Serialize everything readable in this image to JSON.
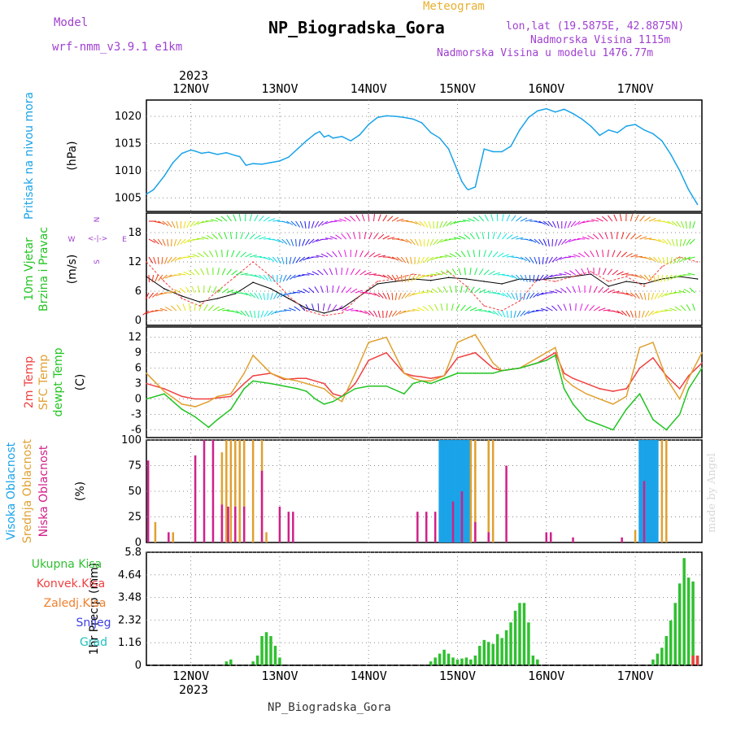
{
  "header": {
    "model_label": "Model",
    "model_name": "wrf-nmm_v3.9.1  e1km",
    "subtitle": "Meteogram",
    "title": "NP_Biogradska_Gora",
    "lonlat": "lon,lat (19.5875E, 42.8875N)",
    "elevation": "Nadmorska Visina 1115m",
    "model_elevation": "Nadmorska Visina u modelu 1476.77m"
  },
  "footer": {
    "station": "NP_Biogradska_Gora",
    "credit": "made by Angel"
  },
  "colors": {
    "pressure": "#1aa3e8",
    "temp2m": "#f04040",
    "sfc": "#e0a030",
    "dewpt": "#22c422",
    "high_cloud": "#1aa3e8",
    "mid_cloud": "#e0a030",
    "low_cloud": "#d0208a",
    "total_precip": "#30c030",
    "conv_precip": "#f04040",
    "frozen_precip": "#f08030",
    "snow": "#4040e0",
    "graupel": "#20c0c0",
    "model_color": "#a040d0",
    "subtitle_color": "#e8b030"
  },
  "chart_data": [
    {
      "panel": "pressure",
      "type": "line",
      "ylabels": [
        "Pritisak na nivou mora",
        "(hPa)"
      ],
      "x_year": "2023",
      "x_ticks": [
        "12NOV",
        "13NOV",
        "14NOV",
        "15NOV",
        "16NOV",
        "17NOV"
      ],
      "y_ticks": [
        "1005",
        "1010",
        "1015",
        "1020"
      ],
      "ylim": [
        1002.5,
        1023
      ],
      "xlim": [
        0,
        6.25
      ],
      "series": [
        {
          "x": [
            0,
            0.08,
            0.2,
            0.3,
            0.4,
            0.5,
            0.55,
            0.62,
            0.7,
            0.8,
            0.9,
            1.0,
            1.05,
            1.12,
            1.2,
            1.3,
            1.4,
            1.5,
            1.6,
            1.7,
            1.8,
            1.9,
            1.95,
            2.0,
            2.05,
            2.1,
            2.2,
            2.3,
            2.4,
            2.5,
            2.6,
            2.7,
            2.8,
            2.9,
            3.0,
            3.1,
            3.2,
            3.3,
            3.4,
            3.45,
            3.5,
            3.55,
            3.6,
            3.62,
            3.7,
            3.8,
            3.9,
            4.0,
            4.1,
            4.2,
            4.3,
            4.4,
            4.5,
            4.6,
            4.7,
            4.8,
            4.9,
            5.0,
            5.1,
            5.2,
            5.3,
            5.4,
            5.5,
            5.6,
            5.7,
            5.8,
            5.9,
            6.0,
            6.1,
            6.2
          ],
          "values": [
            1005.7,
            1006.5,
            1009,
            1011.5,
            1013.2,
            1013.8,
            1013.6,
            1013.2,
            1013.4,
            1013.0,
            1013.3,
            1012.8,
            1012.6,
            1011.0,
            1011.3,
            1011.2,
            1011.5,
            1011.8,
            1012.5,
            1014.0,
            1015.5,
            1016.8,
            1017.2,
            1016.2,
            1016.5,
            1016.0,
            1016.3,
            1015.5,
            1016.6,
            1018.5,
            1019.8,
            1020.1,
            1020.0,
            1019.8,
            1019.5,
            1018.8,
            1017.0,
            1016.0,
            1014.0,
            1012.0,
            1010.0,
            1008.0,
            1006.8,
            1006.5,
            1007.0,
            1014.0,
            1013.5,
            1013.5,
            1014.5,
            1017.5,
            1019.8,
            1021.0,
            1021.4,
            1020.8,
            1021.3,
            1020.5,
            1019.5,
            1018.2,
            1016.5,
            1017.5,
            1017.0,
            1018.2,
            1018.5,
            1017.5,
            1016.8,
            1015.5,
            1013.0,
            1010.0,
            1006.5,
            1003.8
          ]
        }
      ]
    },
    {
      "panel": "wind",
      "type": "line",
      "ylabels": [
        "10m Vjetar",
        "Brzina i Pravac",
        "(m/s)"
      ],
      "direction_legend": [
        "N",
        "<-|->",
        "W",
        "E",
        "S"
      ],
      "y_ticks": [
        "0",
        "6",
        "12",
        "18"
      ],
      "ylim": [
        -1,
        22
      ],
      "xlim": [
        0,
        6.25
      ],
      "series": [
        {
          "name": "speed",
          "x": [
            0,
            0.2,
            0.4,
            0.6,
            0.8,
            1.0,
            1.2,
            1.4,
            1.6,
            1.8,
            2.0,
            2.2,
            2.4,
            2.6,
            2.8,
            3.0,
            3.2,
            3.4,
            3.6,
            3.8,
            4.0,
            4.2,
            4.4,
            4.6,
            4.8,
            5.0,
            5.2,
            5.4,
            5.6,
            5.8,
            6.0,
            6.2
          ],
          "values": [
            9,
            6.5,
            5.0,
            3.8,
            4.5,
            5.5,
            7.8,
            6.5,
            4.5,
            2.5,
            1.5,
            2.5,
            5.0,
            7.5,
            8.0,
            8.5,
            8.2,
            8.8,
            8.5,
            8.0,
            7.5,
            8.5,
            8.3,
            8.7,
            9.0,
            9.5,
            7.0,
            8.0,
            7.5,
            8.5,
            9.0,
            8.5
          ]
        },
        {
          "name": "gust",
          "x": [
            0,
            0.2,
            0.4,
            0.6,
            0.8,
            1.0,
            1.2,
            1.4,
            1.6,
            1.8,
            2.0,
            2.2,
            2.4,
            2.6,
            2.8,
            3.0,
            3.2,
            3.4,
            3.6,
            3.8,
            4.0,
            4.2,
            4.4,
            4.6,
            4.8,
            5.0,
            5.2,
            5.4,
            5.6,
            5.8,
            6.0,
            6.2
          ],
          "values": [
            12,
            8.0,
            4.5,
            3.0,
            6.0,
            9.0,
            12.0,
            9.0,
            5.0,
            2.0,
            1.0,
            1.5,
            5.0,
            8.0,
            8.5,
            9.5,
            9.0,
            10.0,
            7.0,
            3.0,
            2.0,
            4.0,
            8.5,
            8.0,
            9.0,
            10.0,
            8.0,
            9.0,
            7.0,
            11.0,
            13.0,
            12.0
          ]
        }
      ]
    },
    {
      "panel": "temperature",
      "type": "line",
      "ylabels": [
        "2m Temp",
        "SFC Temp",
        "dewpt Temp",
        "(C)"
      ],
      "y_ticks": [
        "-6",
        "-3",
        "0",
        "3",
        "6",
        "9",
        "12"
      ],
      "ylim": [
        -7.5,
        14
      ],
      "xlim": [
        0,
        6.25
      ],
      "series": [
        {
          "name": "2m Temp",
          "x": [
            0,
            0.2,
            0.4,
            0.55,
            0.7,
            0.8,
            0.95,
            1.1,
            1.2,
            1.4,
            1.55,
            1.7,
            1.8,
            1.9,
            2.0,
            2.1,
            2.2,
            2.35,
            2.5,
            2.7,
            2.9,
            3.0,
            3.1,
            3.2,
            3.35,
            3.5,
            3.7,
            3.9,
            4.0,
            4.2,
            4.3,
            4.4,
            4.5,
            4.55,
            4.6,
            4.7,
            4.8,
            4.95,
            5.1,
            5.25,
            5.4,
            5.55,
            5.7,
            5.85,
            6.0,
            6.1,
            6.25
          ],
          "values": [
            3,
            2.0,
            0.5,
            0,
            0,
            0.2,
            0.5,
            3.0,
            4.5,
            5.0,
            3.8,
            4.0,
            4.0,
            3.5,
            3.0,
            1.0,
            0.5,
            3.0,
            7.5,
            9.0,
            5.0,
            4.5,
            4.3,
            4.0,
            4.5,
            8.0,
            9.0,
            6.0,
            5.5,
            6.0,
            6.5,
            7.0,
            8.0,
            8.5,
            9.0,
            5.0,
            4.0,
            3.0,
            2.0,
            1.5,
            2.0,
            6.0,
            8.0,
            4.5,
            2.0,
            4.5,
            7.0
          ]
        },
        {
          "name": "SFC Temp",
          "x": [
            0,
            0.2,
            0.4,
            0.55,
            0.7,
            0.8,
            0.95,
            1.1,
            1.2,
            1.4,
            1.55,
            1.7,
            1.8,
            1.9,
            2.0,
            2.1,
            2.2,
            2.35,
            2.5,
            2.7,
            2.9,
            3.0,
            3.1,
            3.2,
            3.35,
            3.5,
            3.7,
            3.9,
            4.0,
            4.2,
            4.3,
            4.4,
            4.5,
            4.55,
            4.6,
            4.7,
            4.8,
            4.95,
            5.1,
            5.25,
            5.4,
            5.55,
            5.7,
            5.85,
            6.0,
            6.1,
            6.25
          ],
          "values": [
            5,
            1.5,
            -1.0,
            -1.5,
            -0.5,
            0.5,
            1.0,
            5.0,
            8.5,
            5.0,
            4.0,
            3.5,
            3.0,
            2.5,
            2.0,
            0.5,
            -0.5,
            5.0,
            11.0,
            12.0,
            5.0,
            4.0,
            3.5,
            3.5,
            4.5,
            11.0,
            12.5,
            7.0,
            5.5,
            6.0,
            7.0,
            8.0,
            9.0,
            9.5,
            10.0,
            4.0,
            2.5,
            1.0,
            0,
            -1.0,
            0.5,
            10.0,
            11.0,
            4.0,
            0,
            4.0,
            9.0
          ]
        },
        {
          "name": "dewpt Temp",
          "x": [
            0,
            0.2,
            0.4,
            0.55,
            0.7,
            0.8,
            0.95,
            1.1,
            1.2,
            1.4,
            1.55,
            1.7,
            1.8,
            1.9,
            2.0,
            2.1,
            2.2,
            2.35,
            2.5,
            2.7,
            2.9,
            3.0,
            3.1,
            3.2,
            3.35,
            3.5,
            3.7,
            3.9,
            4.0,
            4.2,
            4.3,
            4.4,
            4.5,
            4.55,
            4.6,
            4.7,
            4.8,
            4.95,
            5.1,
            5.25,
            5.4,
            5.55,
            5.7,
            5.85,
            6.0,
            6.1,
            6.25
          ],
          "values": [
            0,
            1.0,
            -2.0,
            -3.5,
            -5.5,
            -4.0,
            -2.0,
            2.0,
            3.5,
            3.0,
            2.5,
            2.0,
            1.5,
            0,
            -1.0,
            -0.5,
            0.5,
            2.0,
            2.5,
            2.5,
            1.0,
            3.0,
            3.5,
            3.0,
            4.0,
            5.0,
            5.0,
            5.0,
            5.5,
            6.0,
            6.5,
            7.0,
            7.5,
            8.0,
            8.5,
            2.0,
            -1.0,
            -4.0,
            -5.0,
            -6.0,
            -2.0,
            1.0,
            -4.0,
            -6.0,
            -3.0,
            2.0,
            6.0
          ]
        }
      ]
    },
    {
      "panel": "clouds",
      "type": "bar",
      "ylabels": [
        "Visoka Oblacnost",
        "Srednja Oblacnost",
        "Niska Oblacnost",
        "(%)"
      ],
      "y_ticks": [
        "0",
        "25",
        "50",
        "75",
        "100"
      ],
      "ylim": [
        0,
        100
      ],
      "xlim": [
        0,
        6.25
      ],
      "series": [
        {
          "name": "Visoka Oblacnost",
          "x": [
            3.3,
            3.32,
            3.34,
            3.36,
            3.38,
            3.4,
            3.42,
            3.44,
            3.46,
            3.48,
            3.5,
            3.52,
            3.54,
            3.56,
            3.58,
            3.6,
            3.62,
            3.64,
            5.55,
            5.57,
            5.59,
            5.61,
            5.63,
            5.65,
            5.67,
            5.69,
            5.71,
            5.73,
            5.75
          ],
          "values": [
            100,
            100,
            100,
            100,
            100,
            100,
            100,
            100,
            100,
            100,
            100,
            100,
            100,
            100,
            100,
            100,
            100,
            100,
            100,
            100,
            100,
            100,
            100,
            100,
            100,
            100,
            100,
            100,
            100
          ]
        },
        {
          "name": "Srednja Oblacnost",
          "x": [
            0.1,
            0.3,
            0.85,
            0.9,
            0.95,
            1.0,
            1.05,
            1.1,
            1.2,
            1.3,
            1.35,
            3.65,
            3.7,
            3.85,
            3.9,
            4.5,
            5.5,
            5.8,
            5.85
          ],
          "values": [
            20,
            10,
            88,
            100,
            100,
            100,
            100,
            100,
            100,
            100,
            10,
            100,
            100,
            100,
            100,
            5,
            12,
            100,
            100
          ]
        },
        {
          "name": "Niska Oblacnost",
          "x": [
            0.02,
            0.25,
            0.55,
            0.65,
            0.75,
            0.85,
            0.92,
            1.0,
            1.1,
            1.3,
            1.5,
            1.6,
            1.65,
            3.05,
            3.15,
            3.25,
            3.45,
            3.55,
            3.7,
            3.85,
            4.05,
            4.5,
            4.55,
            4.8,
            5.35,
            5.6
          ],
          "values": [
            80,
            10,
            85,
            100,
            100,
            37,
            35,
            35,
            35,
            70,
            35,
            30,
            30,
            30,
            30,
            30,
            40,
            50,
            20,
            10,
            75,
            10,
            10,
            5,
            5,
            60
          ]
        }
      ]
    },
    {
      "panel": "precipitation",
      "type": "bar",
      "ylabels": [
        "1hr Precip (mm)"
      ],
      "legend": [
        "Ukupna Kisa",
        "Konvek.Kisa",
        "Zaledj.Kisa",
        "Snijeg",
        "Grad"
      ],
      "y_ticks": [
        "0",
        "1.16",
        "2.32",
        "3.48",
        "4.64",
        "5.8"
      ],
      "ylim": [
        0,
        5.8
      ],
      "xlim": [
        0,
        6.25
      ],
      "series": [
        {
          "name": "Ukupna Kisa",
          "x": [
            0.9,
            0.95,
            1.2,
            1.25,
            1.3,
            1.35,
            1.4,
            1.45,
            1.5,
            3.2,
            3.25,
            3.3,
            3.35,
            3.4,
            3.45,
            3.5,
            3.55,
            3.6,
            3.65,
            3.7,
            3.75,
            3.8,
            3.85,
            3.9,
            3.95,
            4.0,
            4.05,
            4.1,
            4.15,
            4.2,
            4.25,
            4.3,
            4.35,
            4.4,
            5.7,
            5.75,
            5.8,
            5.85,
            5.9,
            5.95,
            6.0,
            6.05,
            6.1,
            6.15,
            6.2
          ],
          "values": [
            0.2,
            0.3,
            0.2,
            0.5,
            1.5,
            1.7,
            1.5,
            1.0,
            0.4,
            0.2,
            0.4,
            0.6,
            0.8,
            0.6,
            0.4,
            0.3,
            0.35,
            0.4,
            0.3,
            0.5,
            1.0,
            1.3,
            1.2,
            1.1,
            1.6,
            1.4,
            1.8,
            2.2,
            2.8,
            3.2,
            3.2,
            2.2,
            0.5,
            0.3,
            0.3,
            0.6,
            0.9,
            1.5,
            2.3,
            3.2,
            4.2,
            5.5,
            4.5,
            4.3,
            0.5
          ]
        },
        {
          "name": "Konvek.Kisa",
          "x": [
            6.15,
            6.2
          ],
          "values": [
            0.5,
            0.5
          ]
        }
      ]
    }
  ]
}
